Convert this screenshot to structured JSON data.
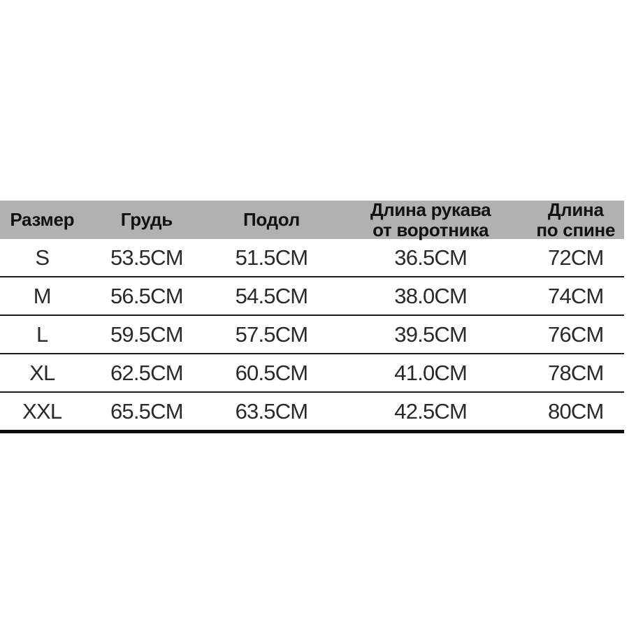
{
  "colors": {
    "header_background": "#b1b1b1",
    "row_separator": "#1b1b1b",
    "bottom_border": "#0d0d0d",
    "page_background": "#ffffff",
    "text": "#1c1c1c"
  },
  "chart_data": {
    "type": "table",
    "title": "",
    "columns": [
      "Размер",
      "Грудь",
      "Подол",
      "Длина рукава\nот воротника",
      "Длина\nпо спине"
    ],
    "rows": [
      {
        "size": "S",
        "chest": "53.5CM",
        "hem": "51.5CM",
        "sleeve_from_collar": "36.5CM",
        "back_length": "72CM"
      },
      {
        "size": "M",
        "chest": "56.5CM",
        "hem": "54.5CM",
        "sleeve_from_collar": "38.0CM",
        "back_length": "74CM"
      },
      {
        "size": "L",
        "chest": "59.5CM",
        "hem": "57.5CM",
        "sleeve_from_collar": "39.5CM",
        "back_length": "76CM"
      },
      {
        "size": "XL",
        "chest": "62.5CM",
        "hem": "60.5CM",
        "sleeve_from_collar": "41.0CM",
        "back_length": "78CM"
      },
      {
        "size": "XXL",
        "chest": "65.5CM",
        "hem": "63.5CM",
        "sleeve_from_collar": "42.5CM",
        "back_length": "80CM"
      }
    ]
  }
}
